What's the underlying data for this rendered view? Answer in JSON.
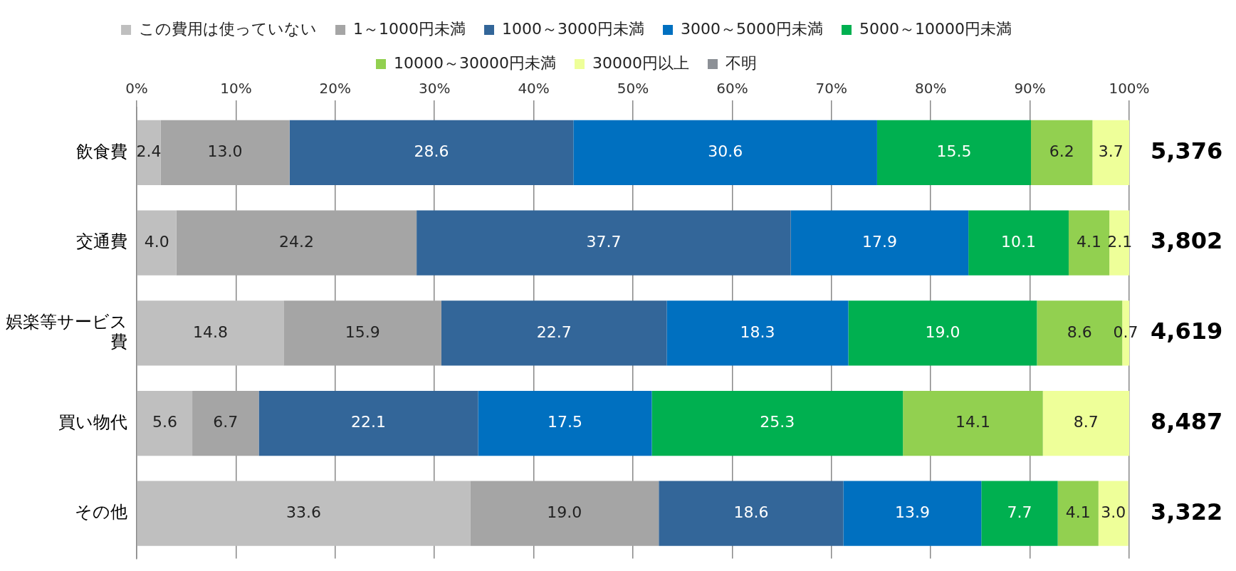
{
  "chart_data": {
    "type": "bar",
    "orientation": "horizontal",
    "stacked": true,
    "grid": "x",
    "legend": "top",
    "categories": [
      "飲食費",
      "交通費",
      "娯楽等サービス費",
      "買い物代",
      "その他"
    ],
    "xlim": [
      0,
      100
    ],
    "xticks": [
      {
        "value": 0,
        "label": "0%"
      },
      {
        "value": 10,
        "label": "10%"
      },
      {
        "value": 20,
        "label": "20%"
      },
      {
        "value": 30,
        "label": "30%"
      },
      {
        "value": 40,
        "label": "40%"
      },
      {
        "value": 50,
        "label": "50%"
      },
      {
        "value": 60,
        "label": "60%"
      },
      {
        "value": 70,
        "label": "70%"
      },
      {
        "value": 80,
        "label": "80%"
      },
      {
        "value": 90,
        "label": "90%"
      },
      {
        "value": 100,
        "label": "100%"
      }
    ],
    "series": [
      {
        "name": "この費用は使っていない",
        "color": "#bfbfbf",
        "values": [
          2.4,
          4.0,
          14.8,
          5.6,
          33.6
        ],
        "value_labels": [
          "2.4",
          "4.0",
          "14.8",
          "5.6",
          "33.6"
        ]
      },
      {
        "name": "1～1000円未満",
        "color": "#a5a5a5",
        "values": [
          13.0,
          24.2,
          15.9,
          6.7,
          19.0
        ],
        "value_labels": [
          "13.0",
          "24.2",
          "15.9",
          "6.7",
          "19.0"
        ]
      },
      {
        "name": "1000～3000円未満",
        "color": "#336699",
        "values": [
          28.6,
          37.7,
          22.7,
          22.1,
          18.6
        ],
        "value_labels": [
          "28.6",
          "37.7",
          "22.7",
          "22.1",
          "18.6"
        ]
      },
      {
        "name": "3000～5000円未満",
        "color": "#0070c0",
        "values": [
          30.6,
          17.9,
          18.3,
          17.5,
          13.9
        ],
        "value_labels": [
          "30.6",
          "17.9",
          "18.3",
          "17.5",
          "13.9"
        ]
      },
      {
        "name": "5000～10000円未満",
        "color": "#00b050",
        "values": [
          15.5,
          10.1,
          19.0,
          25.3,
          7.7
        ],
        "value_labels": [
          "15.5",
          "10.1",
          "19.0",
          "25.3",
          "7.7"
        ]
      },
      {
        "name": "10000～30000円未満",
        "color": "#92d050",
        "values": [
          6.2,
          4.1,
          8.6,
          14.1,
          4.1
        ],
        "value_labels": [
          "6.2",
          "4.1",
          "8.6",
          "14.1",
          "4.1"
        ]
      },
      {
        "name": "30000円以上",
        "color": "#eeff99",
        "values": [
          3.7,
          2.1,
          0.7,
          8.7,
          3.0
        ],
        "value_labels": [
          "3.7",
          "2.1",
          "0.7",
          "8.7",
          "3.0"
        ]
      },
      {
        "name": "不明",
        "color": "#8c9096",
        "values": [
          null,
          null,
          null,
          null,
          null
        ]
      }
    ],
    "annotations": [
      "5,376",
      "3,802",
      "4,619",
      "8,487",
      "3,322"
    ]
  }
}
